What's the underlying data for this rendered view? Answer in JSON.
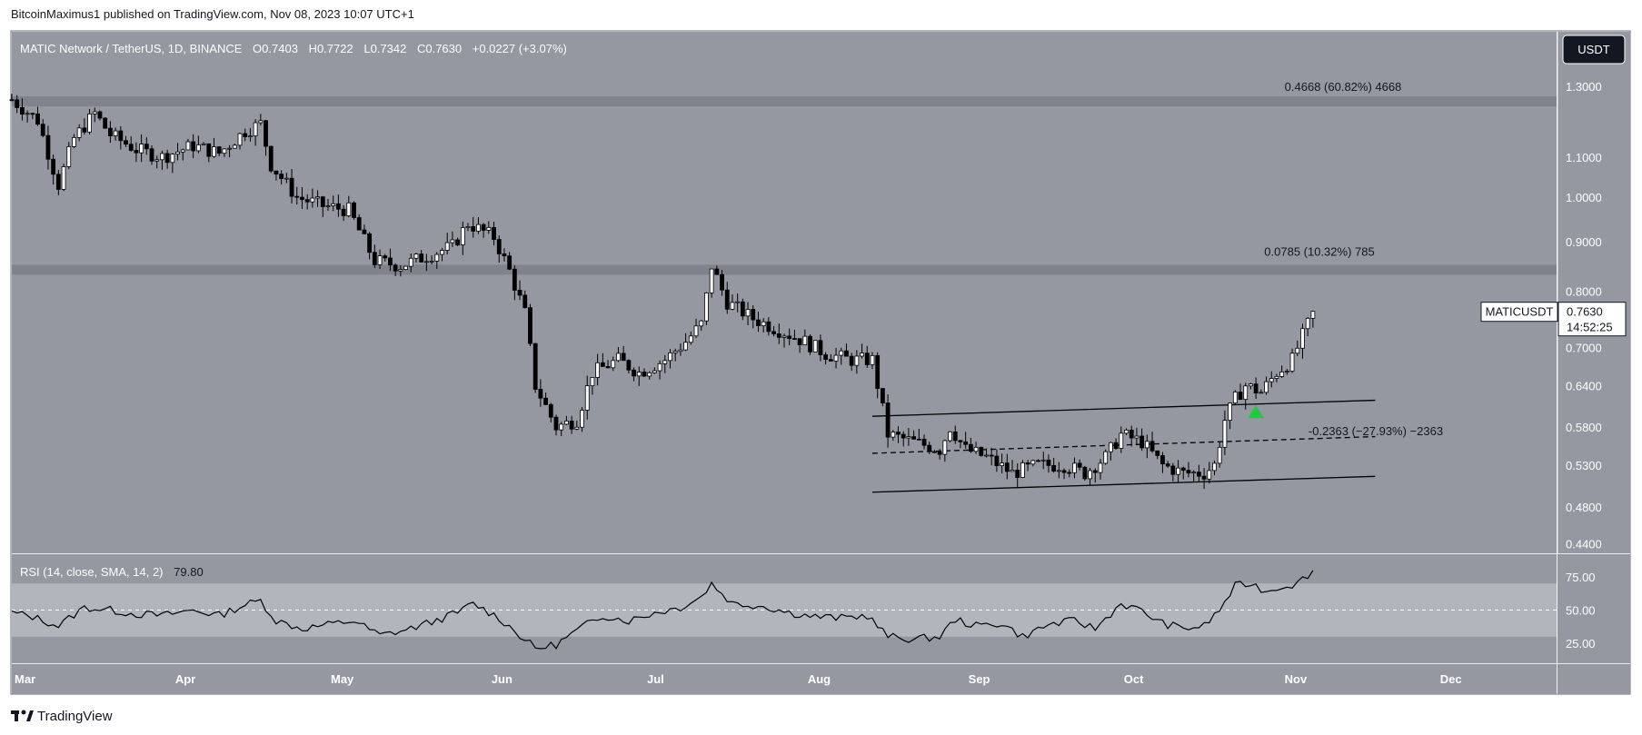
{
  "header": {
    "publisher": "BitcoinMaximus1 published on TradingView.com, Nov 08, 2023 10:07 UTC+1"
  },
  "symbol_bar": {
    "title": "MATIC Network / TetherUS, 1D, BINANCE",
    "open_label": "O",
    "open": "0.7403",
    "high_label": "H",
    "high": "0.7722",
    "low_label": "L",
    "low": "0.7342",
    "close_label": "C",
    "close": "0.7630",
    "change": "+0.0227 (+3.07%)"
  },
  "currency_button": "USDT",
  "price_tag": {
    "symbol": "MATICUSDT",
    "price": "0.7630",
    "countdown": "14:52:25"
  },
  "footer": {
    "logo_text": "TradingView"
  },
  "colors": {
    "background": "#9598a1",
    "candle_up_fill": "#ffffff",
    "candle_down_fill": "#000000",
    "zone": "#80838c",
    "rsi_band": "#b2b5bc",
    "arrow": "#1ecb3c"
  },
  "chart_data": {
    "type": "candlestick",
    "title": "MATIC Network / TetherUS, 1D, BINANCE",
    "y_scale": "log",
    "ylim": [
      0.43,
      1.48
    ],
    "price_ticks": [
      "1.3000",
      "1.1000",
      "1.0000",
      "0.9000",
      "0.8000",
      "0.7000",
      "0.6400",
      "0.5800",
      "0.5300",
      "0.4800",
      "0.4400"
    ],
    "x_ticks": [
      "Mar",
      "Apr",
      "May",
      "Jun",
      "Jul",
      "Aug",
      "Sep",
      "Oct",
      "Nov",
      "Dec"
    ],
    "x_range": [
      "2023-03-01",
      "2023-12-24"
    ],
    "close_path": [
      [
        "2023-03-01",
        1.26
      ],
      [
        "2023-03-06",
        1.2
      ],
      [
        "2023-03-10",
        1.03
      ],
      [
        "2023-03-13",
        1.15
      ],
      [
        "2023-03-17",
        1.22
      ],
      [
        "2023-03-20",
        1.16
      ],
      [
        "2023-03-25",
        1.12
      ],
      [
        "2023-03-30",
        1.1
      ],
      [
        "2023-04-05",
        1.13
      ],
      [
        "2023-04-10",
        1.11
      ],
      [
        "2023-04-15",
        1.17
      ],
      [
        "2023-04-18",
        1.19
      ],
      [
        "2023-04-20",
        1.08
      ],
      [
        "2023-04-25",
        1.0
      ],
      [
        "2023-04-30",
        0.98
      ],
      [
        "2023-05-05",
        0.97
      ],
      [
        "2023-05-10",
        0.86
      ],
      [
        "2023-05-15",
        0.85
      ],
      [
        "2023-05-20",
        0.87
      ],
      [
        "2023-05-25",
        0.89
      ],
      [
        "2023-05-28",
        0.94
      ],
      [
        "2023-06-02",
        0.91
      ],
      [
        "2023-06-05",
        0.84
      ],
      [
        "2023-06-08",
        0.76
      ],
      [
        "2023-06-10",
        0.64
      ],
      [
        "2023-06-14",
        0.58
      ],
      [
        "2023-06-18",
        0.59
      ],
      [
        "2023-06-21",
        0.66
      ],
      [
        "2023-06-26",
        0.68
      ],
      [
        "2023-06-30",
        0.66
      ],
      [
        "2023-07-05",
        0.68
      ],
      [
        "2023-07-09",
        0.71
      ],
      [
        "2023-07-12",
        0.74
      ],
      [
        "2023-07-13",
        0.79
      ],
      [
        "2023-07-14",
        0.85
      ],
      [
        "2023-07-17",
        0.78
      ],
      [
        "2023-07-22",
        0.75
      ],
      [
        "2023-07-27",
        0.73
      ],
      [
        "2023-08-01",
        0.71
      ],
      [
        "2023-08-05",
        0.69
      ],
      [
        "2023-08-10",
        0.68
      ],
      [
        "2023-08-14",
        0.68
      ],
      [
        "2023-08-17",
        0.57
      ],
      [
        "2023-08-22",
        0.56
      ],
      [
        "2023-08-27",
        0.55
      ],
      [
        "2023-08-29",
        0.58
      ],
      [
        "2023-09-01",
        0.55
      ],
      [
        "2023-09-05",
        0.54
      ],
      [
        "2023-09-10",
        0.52
      ],
      [
        "2023-09-15",
        0.53
      ],
      [
        "2023-09-20",
        0.53
      ],
      [
        "2023-09-24",
        0.52
      ],
      [
        "2023-09-28",
        0.54
      ],
      [
        "2023-10-01",
        0.57
      ],
      [
        "2023-10-05",
        0.56
      ],
      [
        "2023-10-09",
        0.53
      ],
      [
        "2023-10-13",
        0.52
      ],
      [
        "2023-10-17",
        0.52
      ],
      [
        "2023-10-19",
        0.53
      ],
      [
        "2023-10-21",
        0.59
      ],
      [
        "2023-10-23",
        0.62
      ],
      [
        "2023-10-25",
        0.64
      ],
      [
        "2023-10-28",
        0.63
      ],
      [
        "2023-10-31",
        0.66
      ],
      [
        "2023-11-03",
        0.68
      ],
      [
        "2023-11-05",
        0.72
      ],
      [
        "2023-11-07",
        0.76
      ]
    ],
    "last_close": 0.763,
    "horizontal_zones": [
      {
        "from": 1.24,
        "to": 1.27
      },
      {
        "from": 0.832,
        "to": 0.852
      }
    ],
    "fib_labels": [
      {
        "text": "0.4668 (60.82%) 4668",
        "price": 1.3
      },
      {
        "text": "0.0785 (10.32%) 785",
        "price": 0.88
      },
      {
        "text": "-0.2363 (−27.93%) −2363",
        "price": 0.575
      }
    ],
    "channel": {
      "upper": [
        [
          "2023-08-14",
          0.595
        ],
        [
          "2023-11-19",
          0.618
        ]
      ],
      "middle": [
        [
          "2023-08-14",
          0.545
        ],
        [
          "2023-11-19",
          0.567
        ]
      ],
      "lower": [
        [
          "2023-08-14",
          0.497
        ],
        [
          "2023-11-19",
          0.516
        ]
      ]
    },
    "breakout_marker": {
      "date": "2023-10-27",
      "price": 0.6
    },
    "rsi": {
      "label": "RSI (14, close, SMA, 14, 2)",
      "value": "79.80",
      "ticks": [
        "75.00",
        "50.00",
        "25.00"
      ],
      "ylim": [
        10,
        92
      ],
      "band": [
        30,
        70
      ],
      "points": [
        [
          "2023-03-01",
          48
        ],
        [
          "2023-03-05",
          45
        ],
        [
          "2023-03-10",
          38
        ],
        [
          "2023-03-15",
          52
        ],
        [
          "2023-03-20",
          50
        ],
        [
          "2023-03-25",
          47
        ],
        [
          "2023-03-30",
          46
        ],
        [
          "2023-04-05",
          50
        ],
        [
          "2023-04-10",
          46
        ],
        [
          "2023-04-15",
          54
        ],
        [
          "2023-04-18",
          57
        ],
        [
          "2023-04-21",
          42
        ],
        [
          "2023-04-26",
          36
        ],
        [
          "2023-05-01",
          39
        ],
        [
          "2023-05-06",
          42
        ],
        [
          "2023-05-11",
          31
        ],
        [
          "2023-05-16",
          35
        ],
        [
          "2023-05-21",
          41
        ],
        [
          "2023-05-26",
          48
        ],
        [
          "2023-05-29",
          55
        ],
        [
          "2023-06-03",
          44
        ],
        [
          "2023-06-07",
          31
        ],
        [
          "2023-06-10",
          21
        ],
        [
          "2023-06-14",
          24
        ],
        [
          "2023-06-19",
          37
        ],
        [
          "2023-06-23",
          46
        ],
        [
          "2023-06-28",
          42
        ],
        [
          "2023-07-03",
          48
        ],
        [
          "2023-07-08",
          52
        ],
        [
          "2023-07-12",
          60
        ],
        [
          "2023-07-14",
          70
        ],
        [
          "2023-07-18",
          55
        ],
        [
          "2023-07-24",
          53
        ],
        [
          "2023-07-29",
          48
        ],
        [
          "2023-08-03",
          45
        ],
        [
          "2023-08-08",
          44
        ],
        [
          "2023-08-13",
          46
        ],
        [
          "2023-08-17",
          30
        ],
        [
          "2023-08-22",
          28
        ],
        [
          "2023-08-27",
          30
        ],
        [
          "2023-08-30",
          43
        ],
        [
          "2023-09-03",
          38
        ],
        [
          "2023-09-08",
          40
        ],
        [
          "2023-09-12",
          30
        ],
        [
          "2023-09-17",
          39
        ],
        [
          "2023-09-22",
          42
        ],
        [
          "2023-09-26",
          36
        ],
        [
          "2023-10-01",
          55
        ],
        [
          "2023-10-05",
          49
        ],
        [
          "2023-10-09",
          40
        ],
        [
          "2023-10-13",
          36
        ],
        [
          "2023-10-17",
          38
        ],
        [
          "2023-10-20",
          50
        ],
        [
          "2023-10-23",
          68
        ],
        [
          "2023-10-26",
          70
        ],
        [
          "2023-10-29",
          64
        ],
        [
          "2023-11-01",
          68
        ],
        [
          "2023-11-04",
          70
        ],
        [
          "2023-11-07",
          79.8
        ]
      ]
    }
  }
}
